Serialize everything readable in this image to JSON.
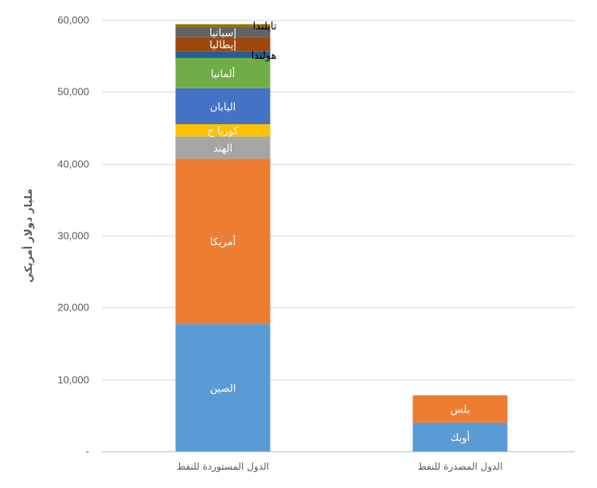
{
  "chart_data": {
    "type": "bar",
    "stacked": true,
    "ylabel": "مليار دولار أمريكي",
    "ylim": [
      0,
      60000
    ],
    "yticks": [
      {
        "value": 0,
        "label": "-"
      },
      {
        "value": 10000,
        "label": "10,000"
      },
      {
        "value": 20000,
        "label": "20,000"
      },
      {
        "value": 30000,
        "label": "30,000"
      },
      {
        "value": 40000,
        "label": "40,000"
      },
      {
        "value": 50000,
        "label": "50,000"
      },
      {
        "value": 60000,
        "label": "60,000"
      }
    ],
    "grid": true,
    "bars": [
      {
        "category": "الدول المستوردة للنفط",
        "segments": [
          {
            "name": "الصين",
            "value": 17700,
            "color": "#5B9BD5",
            "label_pos": "inside"
          },
          {
            "name": "أمريكا",
            "value": 23000,
            "color": "#ED7D31",
            "label_pos": "inside"
          },
          {
            "name": "الهند",
            "value": 3100,
            "color": "#A5A5A5",
            "label_pos": "inside"
          },
          {
            "name": "كوريا ج",
            "value": 1700,
            "color": "#FFC000",
            "label_pos": "inside"
          },
          {
            "name": "اليابان",
            "value": 5000,
            "color": "#4472C4",
            "label_pos": "inside"
          },
          {
            "name": "ألمانيا",
            "value": 4200,
            "color": "#70AD47",
            "label_pos": "inside"
          },
          {
            "name": "هولندا",
            "value": 900,
            "color": "#255E91",
            "label_pos": "right"
          },
          {
            "name": "إيطاليا",
            "value": 2000,
            "color": "#9E480E",
            "label_pos": "inside"
          },
          {
            "name": "إسبانيا",
            "value": 1400,
            "color": "#636363",
            "label_pos": "inside"
          },
          {
            "name": "تايلندا",
            "value": 400,
            "color": "#997300",
            "label_pos": "right"
          }
        ]
      },
      {
        "category": "الدول المصدرة للنفط",
        "segments": [
          {
            "name": "أوبك",
            "value": 4000,
            "color": "#5B9BD5",
            "label_pos": "inside"
          },
          {
            "name": "بلس",
            "value": 3800,
            "color": "#ED7D31",
            "label_pos": "inside"
          }
        ]
      }
    ]
  }
}
